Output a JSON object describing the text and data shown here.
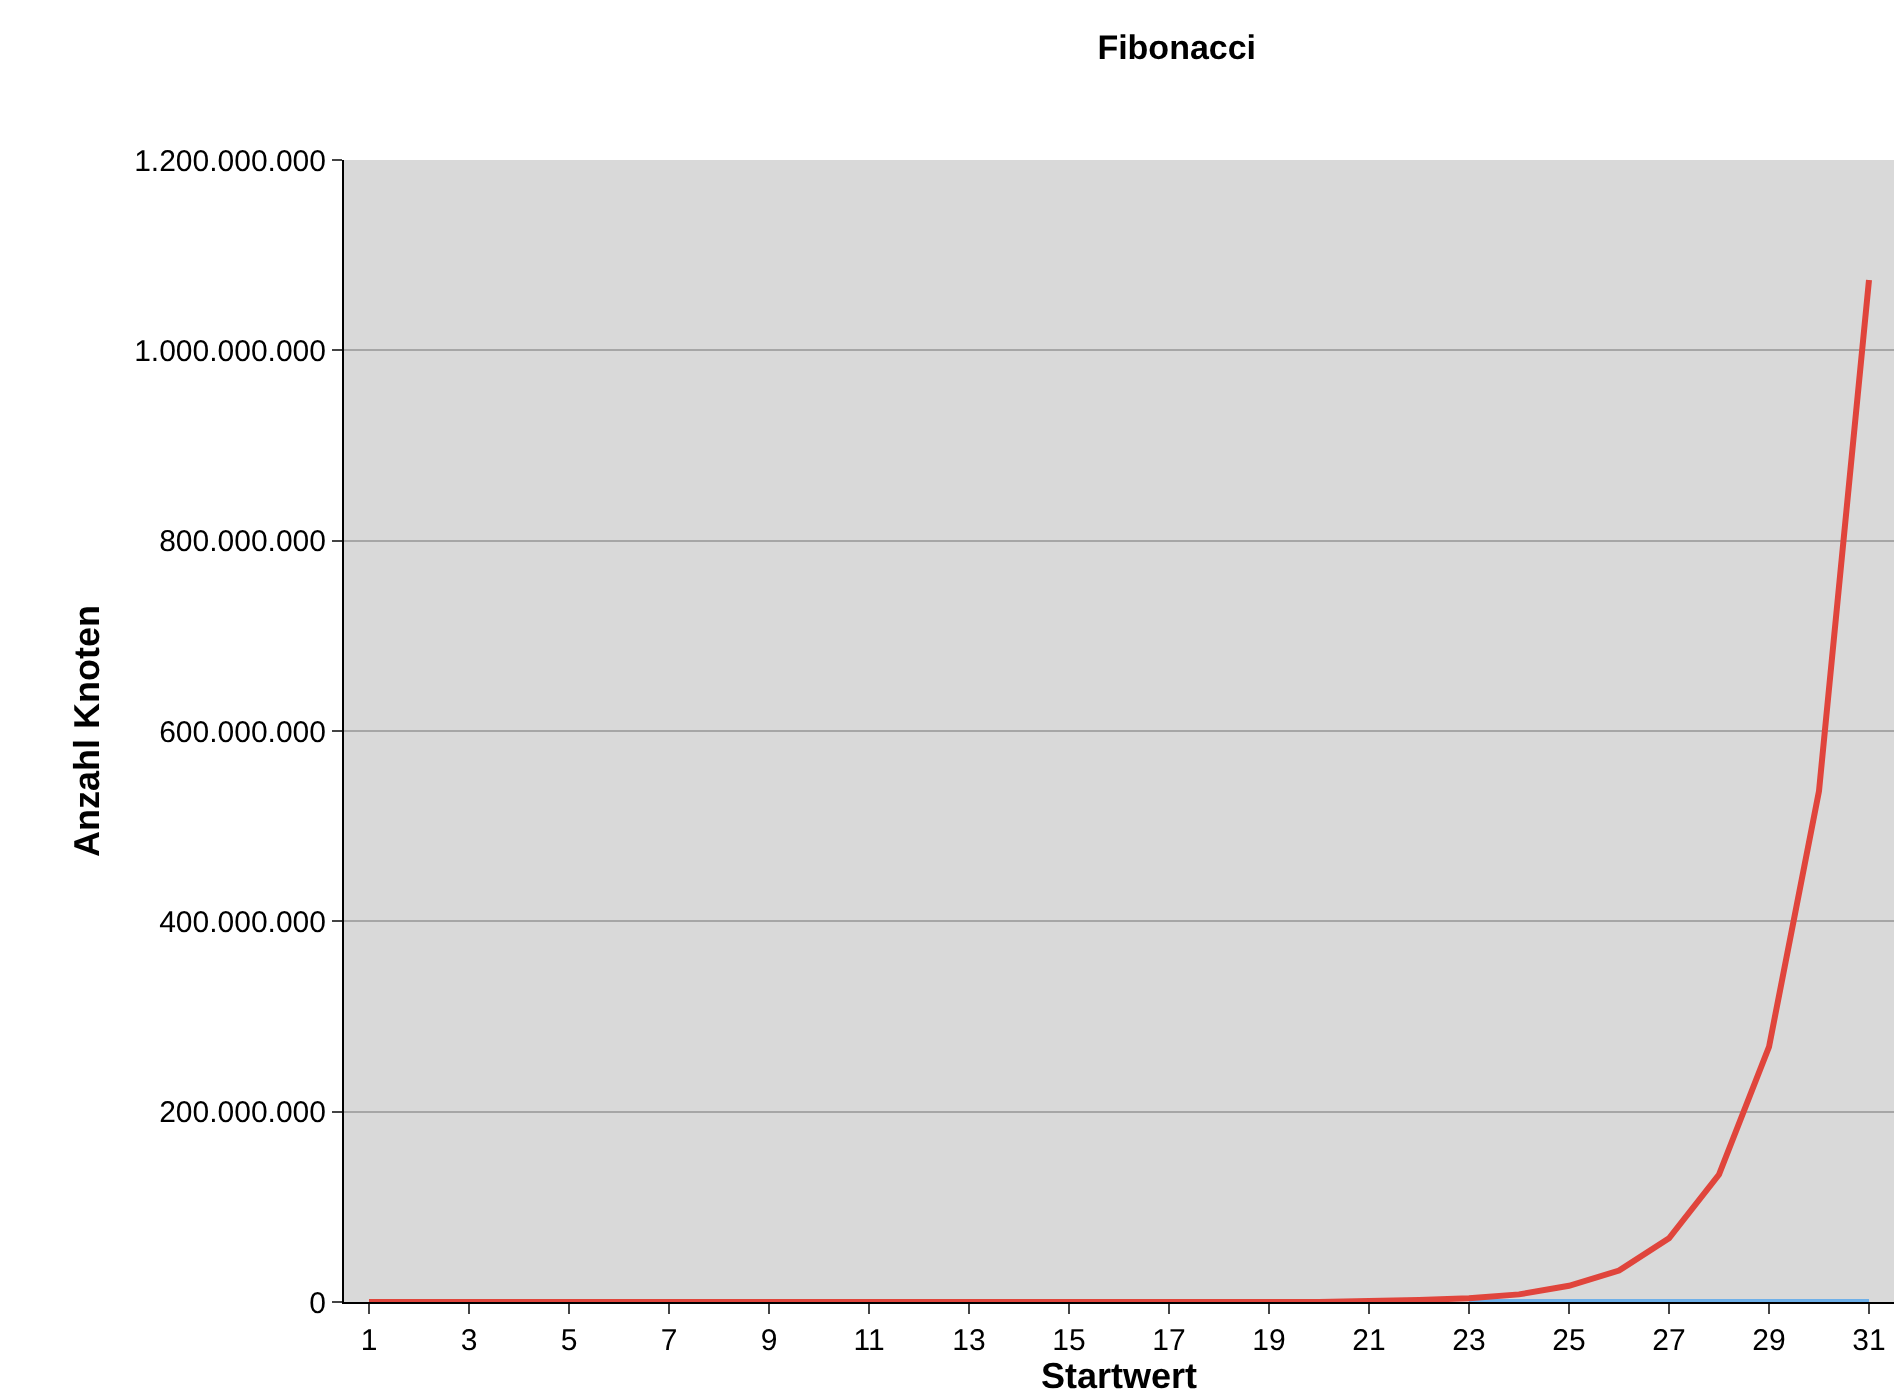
{
  "chart_data": {
    "type": "line",
    "title": "Fibonacci",
    "xlabel": "Startwert",
    "ylabel": "Anzahl Knoten",
    "x": [
      1,
      2,
      3,
      4,
      5,
      6,
      7,
      8,
      9,
      10,
      11,
      12,
      13,
      14,
      15,
      16,
      17,
      18,
      19,
      20,
      21,
      22,
      23,
      24,
      25,
      26,
      27,
      28,
      29,
      30,
      31
    ],
    "series": [
      {
        "color": "#6fb0e8",
        "values": [
          null,
          null,
          null,
          null,
          null,
          null,
          null,
          null,
          null,
          null,
          null,
          null,
          null,
          null,
          null,
          null,
          null,
          null,
          null,
          null,
          null,
          null,
          0,
          0,
          0,
          0,
          0,
          0,
          0,
          0,
          0
        ]
      },
      {
        "color": "#e0453c",
        "values": [
          0,
          0,
          0,
          0,
          0,
          0,
          0,
          0,
          0,
          0,
          0,
          0,
          0,
          0,
          0,
          0,
          0,
          0,
          0,
          0,
          1000000,
          2000000,
          4000000,
          8000000,
          17000000,
          33000000,
          67000000,
          134000000,
          268000000,
          537000000,
          1074000000
        ]
      }
    ],
    "xlim": [
      0.5,
      31.5
    ],
    "xticks": [
      1,
      3,
      5,
      7,
      9,
      11,
      13,
      15,
      17,
      19,
      21,
      23,
      25,
      27,
      29,
      31
    ],
    "ylim": [
      0,
      1200000000
    ],
    "yticks": [
      {
        "value": 0,
        "label": "0"
      },
      {
        "value": 200000000,
        "label": "200.000.000"
      },
      {
        "value": 400000000,
        "label": "400.000.000"
      },
      {
        "value": 600000000,
        "label": "600.000.000"
      },
      {
        "value": 800000000,
        "label": "800.000.000"
      },
      {
        "value": 1000000000,
        "label": "1.000.000.000"
      },
      {
        "value": 1200000000,
        "label": "1.200.000.000"
      }
    ],
    "grid": "y",
    "marker": "none",
    "line_style": "solid"
  }
}
